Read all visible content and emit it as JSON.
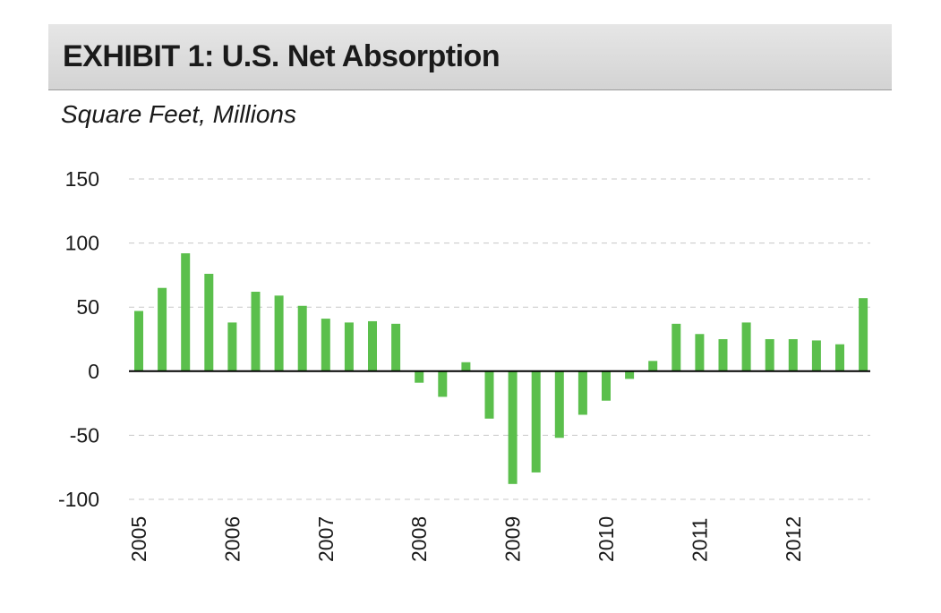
{
  "header": {
    "title": "EXHIBIT 1:  U.S. Net Absorption",
    "subtitle": "Square Feet, Millions"
  },
  "colors": {
    "bar": "#5bbf4c",
    "header_bg": "#dcdcdc",
    "grid": "#c8c8c8"
  },
  "chart_data": {
    "type": "bar",
    "title": "EXHIBIT 1:  U.S. Net Absorption",
    "ylabel": "Square Feet, Millions",
    "xlabel": "",
    "ylim": [
      -100,
      150
    ],
    "yticks": [
      150,
      100,
      50,
      0,
      -50,
      -100
    ],
    "grid": true,
    "year_labels": [
      "2005",
      "2006",
      "2007",
      "2008",
      "2009",
      "2010",
      "2011",
      "2012"
    ],
    "categories": [
      "2005 Q1",
      "2005 Q2",
      "2005 Q3",
      "2005 Q4",
      "2006 Q1",
      "2006 Q2",
      "2006 Q3",
      "2006 Q4",
      "2007 Q1",
      "2007 Q2",
      "2007 Q3",
      "2007 Q4",
      "2008 Q1",
      "2008 Q2",
      "2008 Q3",
      "2008 Q4",
      "2009 Q1",
      "2009 Q2",
      "2009 Q3",
      "2009 Q4",
      "2010 Q1",
      "2010 Q2",
      "2010 Q3",
      "2010 Q4",
      "2011 Q1",
      "2011 Q2",
      "2011 Q3",
      "2011 Q4",
      "2012 Q1",
      "2012 Q2",
      "2012 Q3",
      "2012 Q4"
    ],
    "values": [
      47,
      65,
      92,
      76,
      38,
      62,
      59,
      51,
      41,
      38,
      39,
      37,
      -9,
      -20,
      7,
      -37,
      -88,
      -79,
      -52,
      -34,
      -23,
      -6,
      8,
      37,
      29,
      25,
      38,
      25,
      25,
      24,
      21,
      57
    ]
  }
}
